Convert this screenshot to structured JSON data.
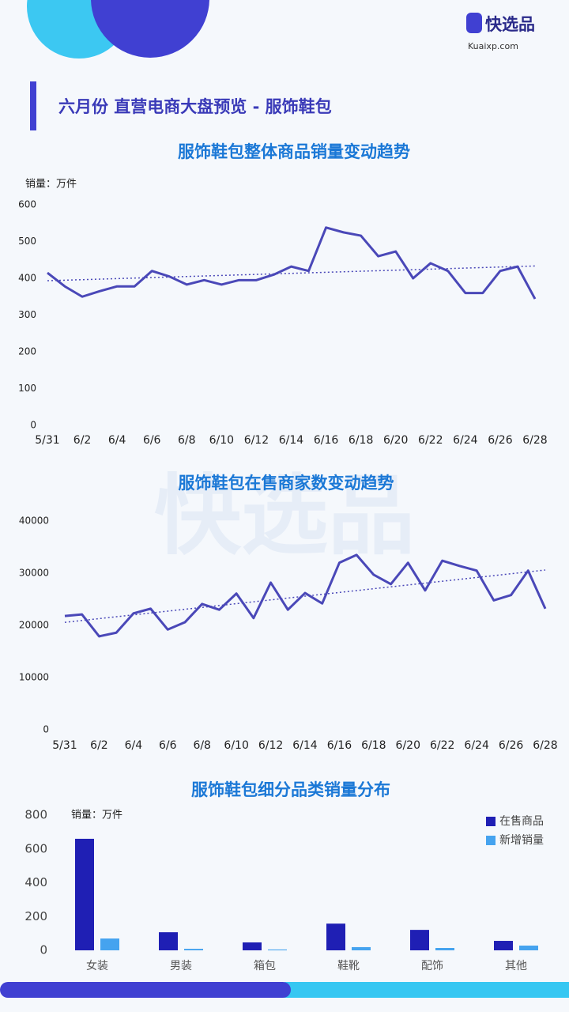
{
  "header": {
    "brand": "快选品",
    "url": "Kuaixp.com",
    "title": "六月份 直营电商大盘预览 - 服饰鞋包"
  },
  "chart_data": [
    {
      "type": "line",
      "title": "服饰鞋包整体商品销量变动趋势",
      "y_label": "销量：万件",
      "categories": [
        "5/31",
        null,
        "6/2",
        null,
        "6/4",
        null,
        "6/6",
        null,
        "6/8",
        null,
        "6/10",
        null,
        "6/12",
        null,
        "6/14",
        null,
        "6/16",
        null,
        "6/18",
        null,
        "6/20",
        null,
        "6/22",
        null,
        "6/24",
        null,
        "6/26",
        null,
        "6/28"
      ],
      "values": [
        415,
        378,
        350,
        365,
        378,
        378,
        420,
        405,
        383,
        395,
        383,
        395,
        395,
        410,
        432,
        420,
        538,
        525,
        516,
        460,
        473,
        400,
        441,
        420,
        360,
        360,
        420,
        432,
        344
      ],
      "color": "#4a48b8",
      "trendline": true,
      "ylim": [
        0,
        600
      ],
      "yticks": [
        0,
        100,
        200,
        300,
        400,
        500,
        600
      ],
      "grid": false
    },
    {
      "type": "line",
      "title": "服饰鞋包在售商家数变动趋势",
      "categories": [
        "5/31",
        null,
        "6/2",
        null,
        "6/4",
        null,
        "6/6",
        null,
        "6/8",
        null,
        "6/10",
        null,
        "6/12",
        null,
        "6/14",
        null,
        "6/16",
        null,
        "6/18",
        null,
        "6/20",
        null,
        "6/22",
        null,
        "6/24",
        null,
        "6/26",
        null,
        "6/28"
      ],
      "values": [
        21800,
        22100,
        17900,
        18600,
        22300,
        23200,
        19200,
        20600,
        24100,
        23000,
        26100,
        21400,
        28200,
        23000,
        26200,
        24200,
        32000,
        33500,
        29700,
        27900,
        32000,
        26700,
        32400,
        31400,
        30500,
        24800,
        25800,
        30500,
        23200
      ],
      "color": "#4a48b8",
      "trendline": true,
      "ylim": [
        0,
        40000
      ],
      "yticks": [
        0,
        10000,
        20000,
        30000,
        40000
      ],
      "grid": false
    },
    {
      "type": "bar",
      "title": "服饰鞋包细分品类销量分布",
      "y_label": "销量：万件",
      "categories": [
        "女装",
        "男装",
        "箱包",
        "鞋靴",
        "配饰",
        "其他"
      ],
      "series": [
        {
          "name": "在售商品",
          "color": "#1f1fb4",
          "values": [
            660,
            107,
            47,
            158,
            121,
            56
          ]
        },
        {
          "name": "新增销量",
          "color": "#45a3ef",
          "values": [
            70,
            9,
            5,
            19,
            14,
            28
          ]
        }
      ],
      "ylim": [
        0,
        800
      ],
      "yticks": [
        0,
        200,
        400,
        600,
        800
      ],
      "grid": false,
      "legend": "top-right"
    }
  ]
}
